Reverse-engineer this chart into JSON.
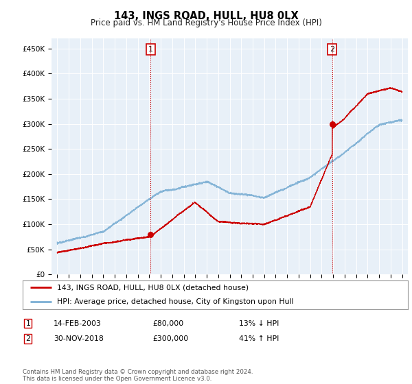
{
  "title": "143, INGS ROAD, HULL, HU8 0LX",
  "subtitle": "Price paid vs. HM Land Registry's House Price Index (HPI)",
  "ylim": [
    0,
    470000
  ],
  "yticks": [
    0,
    50000,
    100000,
    150000,
    200000,
    250000,
    300000,
    350000,
    400000,
    450000
  ],
  "ytick_labels": [
    "£0",
    "£50K",
    "£100K",
    "£150K",
    "£200K",
    "£250K",
    "£300K",
    "£350K",
    "£400K",
    "£450K"
  ],
  "sale1_date": 2003.12,
  "sale1_price": 80000,
  "sale1_label": "1",
  "sale2_date": 2018.92,
  "sale2_price": 300000,
  "sale2_label": "2",
  "hpi_color": "#7bafd4",
  "price_color": "#cc0000",
  "vline_color": "#cc0000",
  "chart_bg": "#e8f0f8",
  "background_color": "#ffffff",
  "grid_color": "#ffffff",
  "legend_label1": "143, INGS ROAD, HULL, HU8 0LX (detached house)",
  "legend_label2": "HPI: Average price, detached house, City of Kingston upon Hull",
  "table_row1": [
    "1",
    "14-FEB-2003",
    "£80,000",
    "13% ↓ HPI"
  ],
  "table_row2": [
    "2",
    "30-NOV-2018",
    "£300,000",
    "41% ↑ HPI"
  ],
  "footer": "Contains HM Land Registry data © Crown copyright and database right 2024.\nThis data is licensed under the Open Government Licence v3.0."
}
